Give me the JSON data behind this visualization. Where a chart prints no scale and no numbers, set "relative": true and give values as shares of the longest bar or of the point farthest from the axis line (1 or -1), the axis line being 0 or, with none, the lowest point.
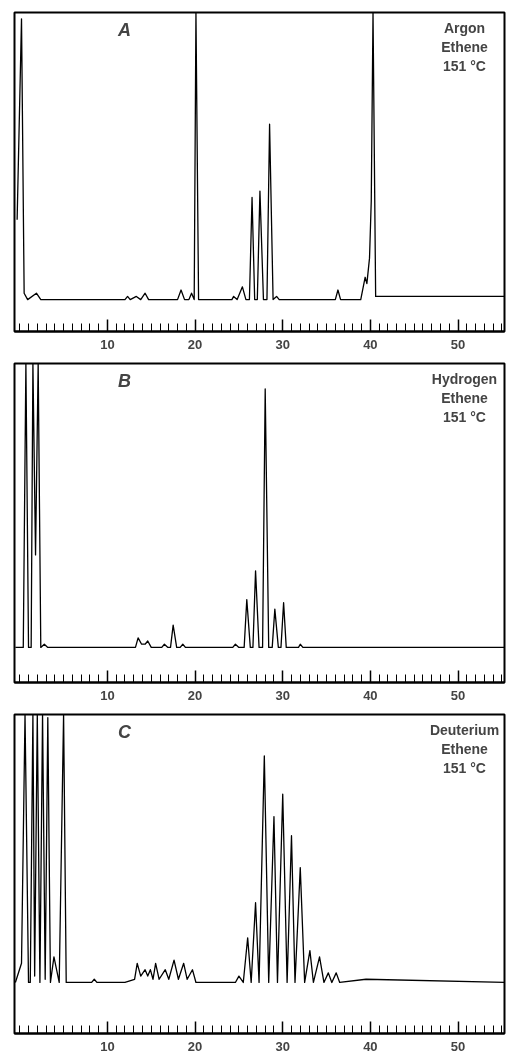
{
  "chart_data": [
    {
      "type": "line",
      "relative": true,
      "annotations": [
        "A",
        "Argon\nEthene\n151 °C"
      ],
      "xlim": [
        -0.6,
        55.3
      ],
      "xticks": [
        {
          "value": 0,
          "label": null
        },
        {
          "value": 1,
          "label": null
        },
        {
          "value": 2,
          "label": null
        },
        {
          "value": 3,
          "label": null
        },
        {
          "value": 4,
          "label": null
        },
        {
          "value": 5,
          "label": null
        },
        {
          "value": 6,
          "label": null
        },
        {
          "value": 7,
          "label": null
        },
        {
          "value": 8,
          "label": null
        },
        {
          "value": 9,
          "label": null
        },
        10,
        {
          "value": 11,
          "label": null
        },
        {
          "value": 12,
          "label": null
        },
        {
          "value": 13,
          "label": null
        },
        {
          "value": 14,
          "label": null
        },
        {
          "value": 15,
          "label": null
        },
        {
          "value": 16,
          "label": null
        },
        {
          "value": 17,
          "label": null
        },
        {
          "value": 18,
          "label": null
        },
        {
          "value": 19,
          "label": null
        },
        20,
        {
          "value": 21,
          "label": null
        },
        {
          "value": 22,
          "label": null
        },
        {
          "value": 23,
          "label": null
        },
        {
          "value": 24,
          "label": null
        },
        {
          "value": 25,
          "label": null
        },
        {
          "value": 26,
          "label": null
        },
        {
          "value": 27,
          "label": null
        },
        {
          "value": 28,
          "label": null
        },
        {
          "value": 29,
          "label": null
        },
        30,
        {
          "value": 31,
          "label": null
        },
        {
          "value": 32,
          "label": null
        },
        {
          "value": 33,
          "label": null
        },
        {
          "value": 34,
          "label": null
        },
        {
          "value": 35,
          "label": null
        },
        {
          "value": 36,
          "label": null
        },
        {
          "value": 37,
          "label": null
        },
        {
          "value": 38,
          "label": null
        },
        {
          "value": 39,
          "label": null
        },
        40,
        {
          "value": 41,
          "label": null
        },
        {
          "value": 42,
          "label": null
        },
        {
          "value": 43,
          "label": null
        },
        {
          "value": 44,
          "label": null
        },
        {
          "value": 45,
          "label": null
        },
        {
          "value": 46,
          "label": null
        },
        {
          "value": 47,
          "label": null
        },
        {
          "value": 48,
          "label": null
        },
        {
          "value": 49,
          "label": null
        },
        50,
        {
          "value": 51,
          "label": null
        },
        {
          "value": 52,
          "label": null
        },
        {
          "value": 53,
          "label": null
        },
        {
          "value": 54,
          "label": null
        },
        {
          "value": 55,
          "label": null
        }
      ],
      "series": [
        {
          "color": "#000000",
          "x": [
            -0.3,
            0.2,
            0.5,
            0.9,
            1.9,
            2.4,
            12.0,
            12.3,
            12.6,
            13.3,
            13.8,
            14.3,
            14.7,
            18.0,
            18.4,
            18.8,
            19.3,
            19.6,
            19.9,
            20.1,
            20.4,
            24.2,
            24.4,
            24.8,
            25.4,
            25.8,
            26.2,
            26.5,
            26.8,
            27.1,
            27.4,
            27.8,
            28.2,
            28.5,
            28.9,
            29.3,
            29.6,
            36.0,
            36.3,
            36.6,
            38.9,
            39.4,
            39.6,
            39.9,
            40.1,
            40.3,
            40.6,
            55.3
          ],
          "values": [
            0.35,
            0.98,
            0.12,
            0.1,
            0.12,
            0.1,
            0.1,
            0.11,
            0.1,
            0.11,
            0.1,
            0.12,
            0.1,
            0.1,
            0.13,
            0.1,
            0.1,
            0.12,
            0.1,
            1.0,
            0.1,
            0.1,
            0.11,
            0.1,
            0.14,
            0.1,
            0.1,
            0.42,
            0.1,
            0.1,
            0.44,
            0.1,
            0.1,
            0.65,
            0.1,
            0.11,
            0.1,
            0.1,
            0.13,
            0.1,
            0.1,
            0.17,
            0.15,
            0.23,
            0.41,
            1.0,
            0.11,
            0.11
          ]
        }
      ]
    },
    {
      "type": "line",
      "relative": true,
      "annotations": [
        "B",
        "Hydrogen\nEthene\n151 °C"
      ],
      "xlim": [
        -0.6,
        55.3
      ],
      "xticks": [
        {
          "value": 0,
          "label": null
        },
        {
          "value": 1,
          "label": null
        },
        {
          "value": 2,
          "label": null
        },
        {
          "value": 3,
          "label": null
        },
        {
          "value": 4,
          "label": null
        },
        {
          "value": 5,
          "label": null
        },
        {
          "value": 6,
          "label": null
        },
        {
          "value": 7,
          "label": null
        },
        {
          "value": 8,
          "label": null
        },
        {
          "value": 9,
          "label": null
        },
        10,
        {
          "value": 11,
          "label": null
        },
        {
          "value": 12,
          "label": null
        },
        {
          "value": 13,
          "label": null
        },
        {
          "value": 14,
          "label": null
        },
        {
          "value": 15,
          "label": null
        },
        {
          "value": 16,
          "label": null
        },
        {
          "value": 17,
          "label": null
        },
        {
          "value": 18,
          "label": null
        },
        {
          "value": 19,
          "label": null
        },
        20,
        {
          "value": 21,
          "label": null
        },
        {
          "value": 22,
          "label": null
        },
        {
          "value": 23,
          "label": null
        },
        {
          "value": 24,
          "label": null
        },
        {
          "value": 25,
          "label": null
        },
        {
          "value": 26,
          "label": null
        },
        {
          "value": 27,
          "label": null
        },
        {
          "value": 28,
          "label": null
        },
        {
          "value": 29,
          "label": null
        },
        30,
        {
          "value": 31,
          "label": null
        },
        {
          "value": 32,
          "label": null
        },
        {
          "value": 33,
          "label": null
        },
        {
          "value": 34,
          "label": null
        },
        {
          "value": 35,
          "label": null
        },
        {
          "value": 36,
          "label": null
        },
        {
          "value": 37,
          "label": null
        },
        {
          "value": 38,
          "label": null
        },
        {
          "value": 39,
          "label": null
        },
        40,
        {
          "value": 41,
          "label": null
        },
        {
          "value": 42,
          "label": null
        },
        {
          "value": 43,
          "label": null
        },
        {
          "value": 44,
          "label": null
        },
        {
          "value": 45,
          "label": null
        },
        {
          "value": 46,
          "label": null
        },
        {
          "value": 47,
          "label": null
        },
        {
          "value": 48,
          "label": null
        },
        {
          "value": 49,
          "label": null
        },
        50,
        {
          "value": 51,
          "label": null
        },
        {
          "value": 52,
          "label": null
        },
        {
          "value": 53,
          "label": null
        },
        {
          "value": 54,
          "label": null
        },
        {
          "value": 55,
          "label": null
        }
      ],
      "series": [
        {
          "color": "#000000",
          "x": [
            -0.5,
            0.4,
            0.7,
            1.0,
            1.3,
            1.5,
            1.8,
            2.1,
            2.4,
            2.8,
            3.2,
            13.2,
            13.5,
            13.9,
            14.3,
            14.6,
            15.0,
            16.2,
            16.5,
            16.9,
            17.2,
            17.5,
            17.9,
            18.3,
            18.6,
            18.9,
            24.3,
            24.6,
            25.0,
            25.6,
            25.9,
            26.3,
            26.6,
            26.9,
            27.3,
            27.7,
            28.0,
            28.4,
            28.8,
            29.1,
            29.5,
            29.8,
            30.1,
            30.4,
            31.8,
            32.0,
            32.3,
            55.3
          ],
          "values": [
            0.11,
            0.11,
            1.0,
            0.11,
            0.11,
            1.0,
            0.4,
            1.0,
            0.11,
            0.12,
            0.11,
            0.11,
            0.14,
            0.12,
            0.12,
            0.13,
            0.11,
            0.11,
            0.12,
            0.11,
            0.11,
            0.18,
            0.11,
            0.11,
            0.12,
            0.11,
            0.11,
            0.12,
            0.11,
            0.11,
            0.26,
            0.11,
            0.11,
            0.35,
            0.11,
            0.11,
            0.92,
            0.11,
            0.11,
            0.23,
            0.11,
            0.11,
            0.25,
            0.11,
            0.11,
            0.12,
            0.11,
            0.11
          ]
        }
      ]
    },
    {
      "type": "line",
      "relative": true,
      "annotations": [
        "C",
        "Deuterium\nEthene\n151 °C"
      ],
      "xlim": [
        -0.6,
        55.3
      ],
      "xticks": [
        {
          "value": 0,
          "label": null
        },
        {
          "value": 1,
          "label": null
        },
        {
          "value": 2,
          "label": null
        },
        {
          "value": 3,
          "label": null
        },
        {
          "value": 4,
          "label": null
        },
        {
          "value": 5,
          "label": null
        },
        {
          "value": 6,
          "label": null
        },
        {
          "value": 7,
          "label": null
        },
        {
          "value": 8,
          "label": null
        },
        {
          "value": 9,
          "label": null
        },
        10,
        {
          "value": 11,
          "label": null
        },
        {
          "value": 12,
          "label": null
        },
        {
          "value": 13,
          "label": null
        },
        {
          "value": 14,
          "label": null
        },
        {
          "value": 15,
          "label": null
        },
        {
          "value": 16,
          "label": null
        },
        {
          "value": 17,
          "label": null
        },
        {
          "value": 18,
          "label": null
        },
        {
          "value": 19,
          "label": null
        },
        20,
        {
          "value": 21,
          "label": null
        },
        {
          "value": 22,
          "label": null
        },
        {
          "value": 23,
          "label": null
        },
        {
          "value": 24,
          "label": null
        },
        {
          "value": 25,
          "label": null
        },
        {
          "value": 26,
          "label": null
        },
        {
          "value": 27,
          "label": null
        },
        {
          "value": 28,
          "label": null
        },
        {
          "value": 29,
          "label": null
        },
        30,
        {
          "value": 31,
          "label": null
        },
        {
          "value": 32,
          "label": null
        },
        {
          "value": 33,
          "label": null
        },
        {
          "value": 34,
          "label": null
        },
        {
          "value": 35,
          "label": null
        },
        {
          "value": 36,
          "label": null
        },
        {
          "value": 37,
          "label": null
        },
        {
          "value": 38,
          "label": null
        },
        {
          "value": 39,
          "label": null
        },
        40,
        {
          "value": 41,
          "label": null
        },
        {
          "value": 42,
          "label": null
        },
        {
          "value": 43,
          "label": null
        },
        {
          "value": 44,
          "label": null
        },
        {
          "value": 45,
          "label": null
        },
        {
          "value": 46,
          "label": null
        },
        {
          "value": 47,
          "label": null
        },
        {
          "value": 48,
          "label": null
        },
        {
          "value": 49,
          "label": null
        },
        50,
        {
          "value": 51,
          "label": null
        },
        {
          "value": 52,
          "label": null
        },
        {
          "value": 53,
          "label": null
        },
        {
          "value": 54,
          "label": null
        },
        {
          "value": 55,
          "label": null
        }
      ],
      "series": [
        {
          "color": "#000000",
          "x": [
            -0.5,
            0.2,
            0.6,
            1.0,
            1.2,
            1.5,
            1.7,
            2.0,
            2.3,
            2.6,
            2.9,
            3.2,
            3.5,
            3.9,
            4.5,
            5.0,
            5.3,
            8.2,
            8.5,
            8.8,
            12.0,
            13.1,
            13.4,
            13.8,
            14.3,
            14.6,
            14.9,
            15.2,
            15.5,
            15.9,
            16.6,
            17.0,
            17.6,
            18.1,
            18.7,
            19.1,
            19.7,
            20.1,
            24.6,
            25.0,
            25.5,
            26.0,
            26.4,
            26.9,
            27.3,
            27.9,
            28.4,
            29.0,
            29.4,
            30.0,
            30.5,
            31.0,
            31.4,
            32.0,
            32.5,
            33.1,
            33.5,
            34.2,
            34.7,
            35.2,
            35.6,
            36.1,
            36.5,
            39.5,
            55.3
          ],
          "values": [
            0.16,
            0.22,
            1.0,
            0.16,
            0.16,
            1.0,
            0.18,
            1.0,
            0.16,
            1.0,
            0.17,
            0.99,
            0.16,
            0.24,
            0.16,
            1.0,
            0.16,
            0.16,
            0.17,
            0.16,
            0.16,
            0.17,
            0.22,
            0.18,
            0.2,
            0.18,
            0.2,
            0.17,
            0.22,
            0.17,
            0.2,
            0.17,
            0.23,
            0.17,
            0.22,
            0.17,
            0.2,
            0.16,
            0.16,
            0.18,
            0.16,
            0.3,
            0.16,
            0.41,
            0.16,
            0.87,
            0.16,
            0.68,
            0.16,
            0.75,
            0.16,
            0.62,
            0.16,
            0.52,
            0.16,
            0.26,
            0.16,
            0.24,
            0.16,
            0.19,
            0.16,
            0.19,
            0.16,
            0.17,
            0.16
          ]
        }
      ]
    }
  ]
}
